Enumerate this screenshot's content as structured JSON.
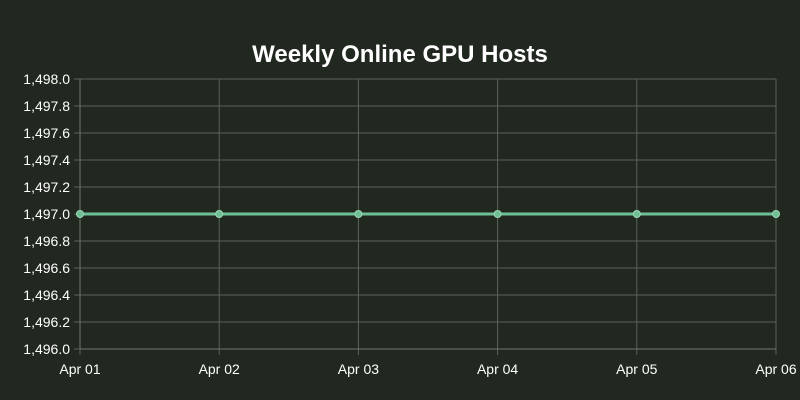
{
  "chart_data": {
    "type": "line",
    "title": "Weekly Online GPU Hosts",
    "xlabel": "",
    "ylabel": "",
    "categories": [
      "Apr 01",
      "Apr 02",
      "Apr 03",
      "Apr 04",
      "Apr 05",
      "Apr 06"
    ],
    "series": [
      {
        "values": [
          1497,
          1497,
          1497,
          1497,
          1497,
          1497
        ]
      }
    ],
    "ylim": [
      1496.0,
      1498.0
    ],
    "yticks": [
      "1,496.0",
      "1,496.2",
      "1,496.4",
      "1,496.6",
      "1,496.8",
      "1,497.0",
      "1,497.2",
      "1,497.4",
      "1,497.6",
      "1,497.8",
      "1,498.0"
    ],
    "grid": true,
    "legend": false,
    "colors": {
      "background": "#212820",
      "line": "#6fbf94",
      "point": "#6fbf94",
      "grid": "#5b625a",
      "text": "#ffffff"
    }
  }
}
